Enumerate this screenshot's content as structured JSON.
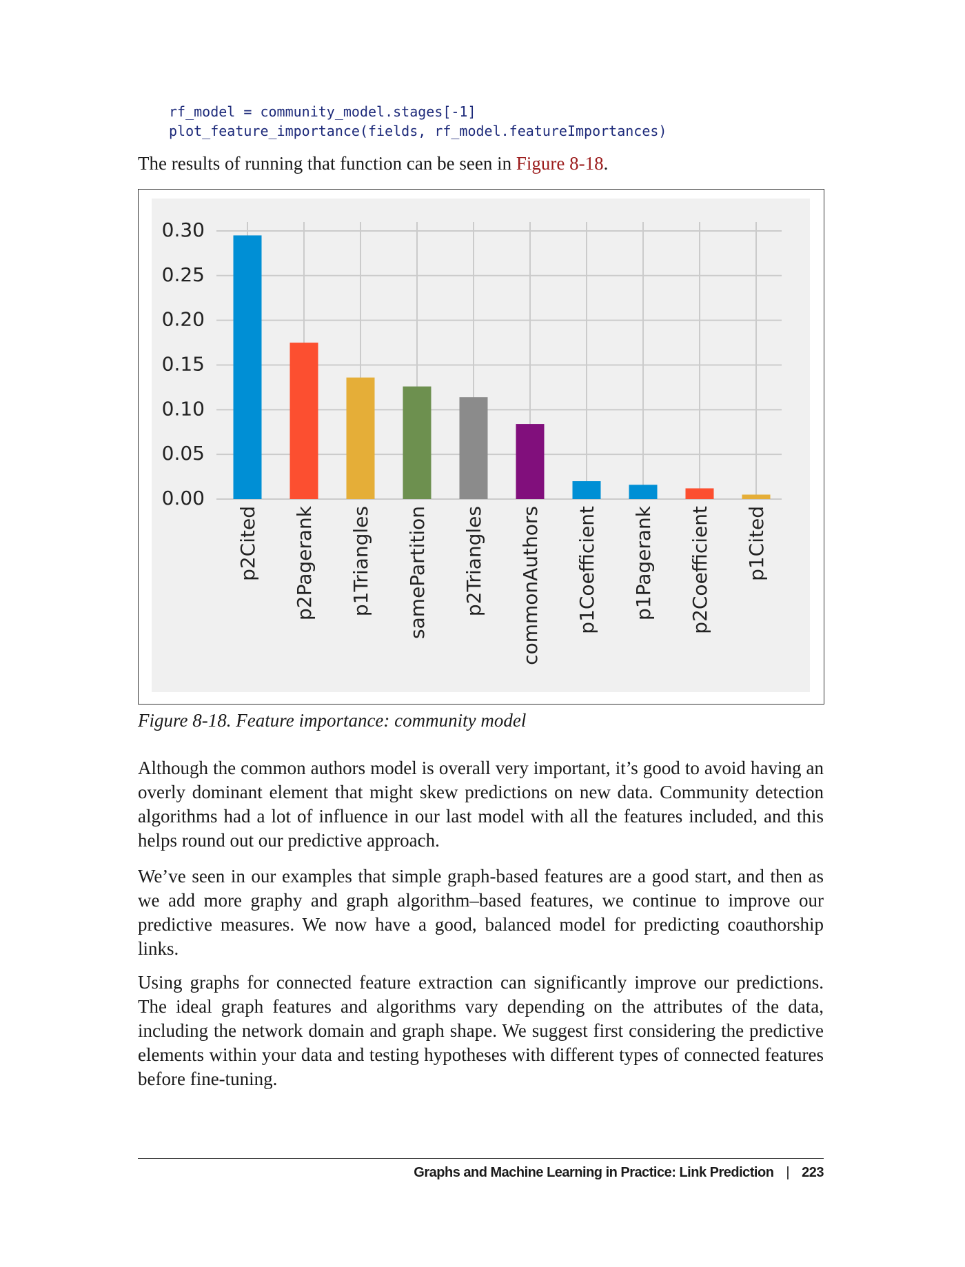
{
  "code": [
    "rf_model = community_model.stages[-1]",
    "plot_feature_importance(fields, rf_model.featureImportances)"
  ],
  "intro": {
    "before": "The results of running that function can be seen in ",
    "link": "Figure 8-18",
    "after": "."
  },
  "chart_data": {
    "type": "bar",
    "categories": [
      "p2Cited",
      "p2Pagerank",
      "p1Triangles",
      "samePartition",
      "p2Triangles",
      "commonAuthors",
      "p1Coefficient",
      "p1Pagerank",
      "p2Coefficient",
      "p1Cited"
    ],
    "values": [
      0.295,
      0.175,
      0.136,
      0.126,
      0.114,
      0.084,
      0.02,
      0.016,
      0.012,
      0.005
    ],
    "colors": [
      "#008fd5",
      "#fc4f30",
      "#e5ae38",
      "#6d904f",
      "#8b8b8b",
      "#810f7c",
      "#008fd5",
      "#008fd5",
      "#fc4f30",
      "#e5ae38"
    ],
    "ylim": [
      0,
      0.31
    ],
    "yticks": [
      {
        "value": 0,
        "label": "0.00"
      },
      {
        "value": 0.05,
        "label": "0.05"
      },
      {
        "value": 0.1,
        "label": "0.10"
      },
      {
        "value": 0.15,
        "label": "0.15"
      },
      {
        "value": 0.2,
        "label": "0.20"
      },
      {
        "value": 0.25,
        "label": "0.25"
      },
      {
        "value": 0.3,
        "label": "0.30"
      }
    ],
    "grid": true
  },
  "caption": "Figure 8-18. Feature importance: community model",
  "paragraphs": [
    "Although the common authors model is overall very important, it’s good to avoid having an overly dominant element that might skew predictions on new data. Community detection algorithms had a lot of influence in our last model with all the features included, and this helps round out our predictive approach.",
    "We’ve seen in our examples that simple graph-based features are a good start, and then as we add more graphy and graph algorithm–based features, we continue to improve our predictive measures. We now have a good, balanced model for predicting coauthorship links.",
    "Using graphs for connected feature extraction can significantly improve our predictions. The ideal graph features and algorithms vary depending on the attributes of the data, including the network domain and graph shape. We suggest first considering the predictive elements within your data and testing hypotheses with different types of connected features before fine-tuning."
  ],
  "footer": {
    "title": "Graphs and Machine Learning in Practice: Link Prediction",
    "page": "223"
  }
}
